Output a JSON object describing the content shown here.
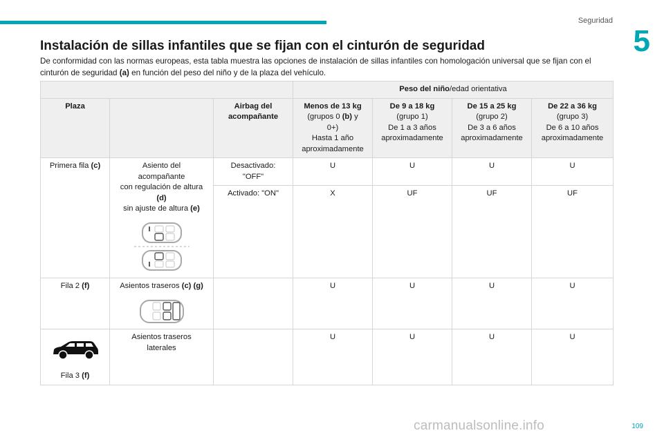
{
  "header": {
    "section": "Seguridad",
    "chapter": "5"
  },
  "title": "Instalación de sillas infantiles que se fijan con el cinturón de seguridad",
  "intro": {
    "part1": "De conformidad con las normas europeas, esta tabla muestra las opciones de instalación de sillas infantiles con homologación universal que se fijan con el cinturón de seguridad ",
    "bold": "(a)",
    "part2": " en función del peso del niño y de la plaza del vehículo."
  },
  "table": {
    "group_header": {
      "bold": "Peso del niño",
      "rest": "/edad orientativa"
    },
    "col_plaza": "Plaza",
    "col_airbag_line1": "Airbag del",
    "col_airbag_line2": "acompañante",
    "weight_cols": [
      {
        "weight": "Menos de 13 kg",
        "l1a": "(grupos 0 ",
        "l1b": "(b)",
        "l1c": " y",
        "l2": "0+)",
        "l3": "Hasta 1 año",
        "l4": "aproximadamente"
      },
      {
        "weight": "De 9 a 18 kg",
        "l1": "(grupo 1)",
        "l2": "De 1 a 3 años",
        "l3": "aproximadamente"
      },
      {
        "weight": "De 15 a 25 kg",
        "l1": "(grupo 2)",
        "l2": "De 3 a 6 años",
        "l3": "aproximadamente"
      },
      {
        "weight": "De 22 a 36 kg",
        "l1": "(grupo 3)",
        "l2": "De 6 a 10 años",
        "l3": "aproximadamente"
      }
    ],
    "row1": {
      "plaza": "Primera fila ",
      "plaza_bold": "(c)",
      "seat_l1": "Asiento del",
      "seat_l2": "acompañante",
      "seat_l3": "con regulación de altura",
      "seat_l4": "(d)",
      "seat_l5": "sin ajuste de altura ",
      "seat_l5_bold": "(e)",
      "airbag_off_l1": "Desactivado:",
      "airbag_off_l2": "\"OFF\"",
      "off_values": [
        "U",
        "U",
        "U",
        "U"
      ],
      "airbag_on": "Activado: \"ON\"",
      "on_values": [
        "X",
        "UF",
        "UF",
        "UF"
      ]
    },
    "row2": {
      "plaza": "Fila 2 ",
      "plaza_bold": "(f)",
      "seat": "Asientos traseros ",
      "seat_bold": "(c) (g)",
      "values": [
        "U",
        "U",
        "U",
        "U"
      ]
    },
    "row3": {
      "plaza": "Fila 3 ",
      "plaza_bold": "(f)",
      "seat_l1": "Asientos traseros",
      "seat_l2": "laterales",
      "values": [
        "U",
        "U",
        "U",
        "U"
      ]
    }
  },
  "footer": {
    "page": "109",
    "watermark": "carmanualsonline.info"
  }
}
